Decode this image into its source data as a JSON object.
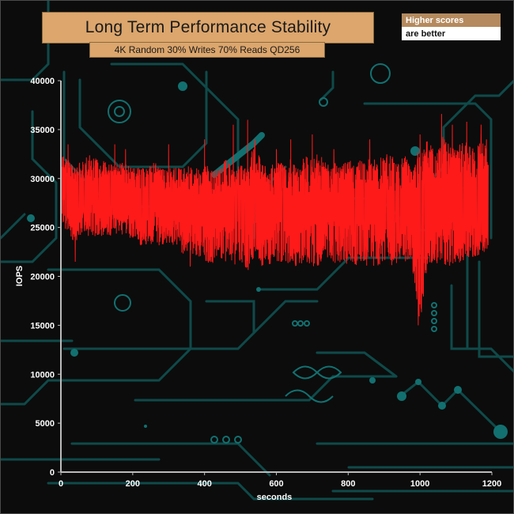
{
  "header": {
    "title": "Long Term Performance Stability",
    "subtitle": "4K Random 30% Writes 70% Reads QD256",
    "legend_line1": "Higher scores",
    "legend_line2": "are better"
  },
  "colors": {
    "series": "#ff1a1a",
    "title_bg": "#dca66d",
    "legend_bg": "#b58a5e",
    "axis": "#bbbbbb",
    "circuit": "#0f5a5a"
  },
  "chart_data": {
    "type": "line",
    "title": "Long Term Performance Stability",
    "subtitle": "4K Random 30% Writes 70% Reads QD256",
    "xlabel": "seconds",
    "ylabel": "IOPS",
    "xlim": [
      0,
      1200
    ],
    "ylim": [
      0,
      40000
    ],
    "x_ticks": [
      0,
      200,
      400,
      600,
      800,
      1000,
      1200
    ],
    "y_ticks": [
      0,
      5000,
      10000,
      15000,
      20000,
      25000,
      30000,
      35000,
      40000
    ],
    "grid": false,
    "series": [
      {
        "x": [
          0,
          20,
          40,
          60,
          80,
          100,
          120,
          140,
          160,
          180,
          200,
          220,
          240,
          260,
          280,
          300,
          320,
          340,
          360,
          380,
          400,
          420,
          440,
          460,
          480,
          500,
          520,
          540,
          560,
          580,
          600,
          620,
          640,
          660,
          680,
          700,
          720,
          740,
          760,
          780,
          800,
          820,
          840,
          860,
          880,
          900,
          920,
          940,
          960,
          980,
          1000,
          1020,
          1040,
          1060,
          1080,
          1100,
          1120,
          1140,
          1160,
          1180,
          1190
        ],
        "center": [
          29500,
          29000,
          28500,
          28800,
          29000,
          28600,
          28700,
          28800,
          28600,
          28500,
          28400,
          28200,
          28100,
          28300,
          28000,
          28100,
          28000,
          27800,
          27600,
          27500,
          27400,
          27300,
          27500,
          27200,
          27000,
          27100,
          27000,
          27200,
          27000,
          26900,
          27000,
          27100,
          27000,
          27200,
          27100,
          27000,
          27200,
          27300,
          27200,
          27000,
          27100,
          27200,
          27300,
          27100,
          27200,
          27300,
          27200,
          27400,
          27300,
          27200,
          27100,
          27300,
          27400,
          27200,
          27300,
          27400,
          27500,
          27600,
          27800,
          28000,
          28200
        ],
        "low": [
          25500,
          24000,
          23500,
          24500,
          24000,
          24000,
          24200,
          24000,
          24500,
          24000,
          23500,
          23200,
          23000,
          23500,
          23000,
          23200,
          23000,
          22000,
          22500,
          22000,
          21500,
          21000,
          22000,
          21500,
          21000,
          21500,
          20500,
          21500,
          21000,
          21200,
          20800,
          21500,
          21000,
          21000,
          21500,
          21000,
          21000,
          22000,
          21200,
          21000,
          21200,
          21000,
          21500,
          20500,
          21000,
          21500,
          21000,
          21500,
          21500,
          20500,
          15000,
          21000,
          21500,
          21000,
          21000,
          21200,
          21500,
          22000,
          22000,
          22500,
          23000
        ],
        "high": [
          32500,
          32000,
          31500,
          31800,
          32500,
          32000,
          32000,
          31500,
          31800,
          31500,
          31500,
          31200,
          31000,
          32000,
          31000,
          31000,
          31200,
          31000,
          31500,
          31000,
          31500,
          31000,
          31000,
          32000,
          31000,
          31500,
          31000,
          34000,
          31500,
          31000,
          32000,
          31500,
          32000,
          31000,
          32500,
          32000,
          33000,
          31500,
          32000,
          31500,
          32000,
          31500,
          32500,
          32000,
          32000,
          32500,
          32500,
          32000,
          32500,
          32000,
          33000,
          34000,
          33000,
          34500,
          33500,
          33000,
          34000,
          33500,
          34000,
          33500,
          33000
        ],
        "spikes": [
          [
            20,
            33500
          ],
          [
            40,
            21500
          ],
          [
            150,
            33500
          ],
          [
            180,
            33000
          ],
          [
            300,
            33500
          ],
          [
            360,
            21000
          ],
          [
            400,
            34000
          ],
          [
            480,
            35500
          ],
          [
            520,
            36000
          ],
          [
            540,
            34000
          ],
          [
            600,
            33000
          ],
          [
            640,
            34000
          ],
          [
            700,
            34500
          ],
          [
            760,
            33000
          ],
          [
            860,
            34000
          ],
          [
            980,
            22000
          ],
          [
            995,
            15000
          ],
          [
            1000,
            34500
          ],
          [
            1060,
            36600
          ],
          [
            1090,
            35500
          ],
          [
            1130,
            35800
          ],
          [
            1170,
            35500
          ],
          [
            1185,
            34000
          ]
        ]
      }
    ]
  }
}
